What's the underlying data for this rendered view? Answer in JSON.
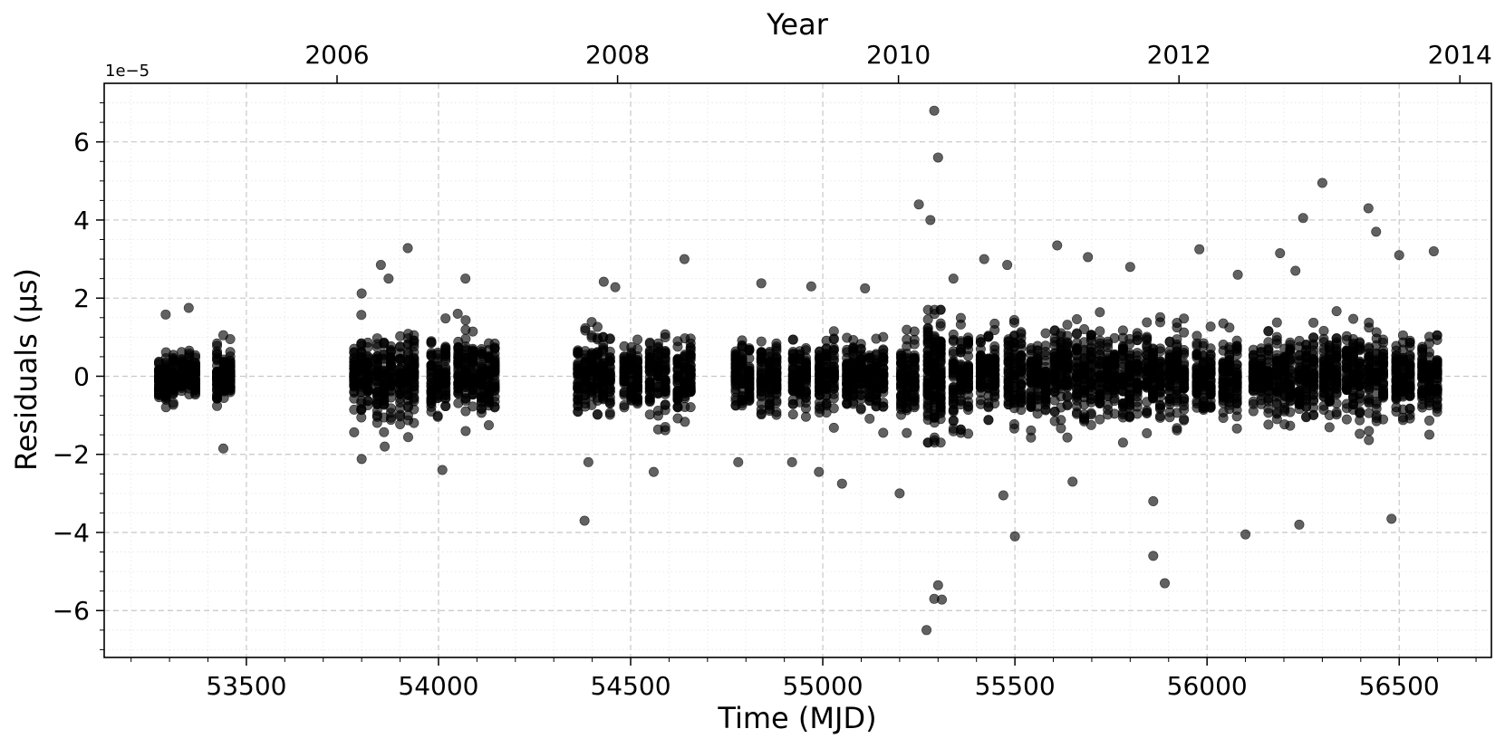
{
  "chart_data": {
    "type": "scatter",
    "xlabel": "Time (MJD)",
    "ylabel": "Residuals (µs)",
    "top_xlabel": "Year",
    "y_offset_text": "1e−5",
    "xlim": [
      53130,
      56740
    ],
    "ylim": [
      -7.2e-05,
      7.5e-05
    ],
    "x_ticks": [
      53500,
      54000,
      54500,
      55000,
      55500,
      56000,
      56500
    ],
    "x_tick_labels": [
      "53500",
      "54000",
      "54500",
      "55000",
      "55500",
      "56000",
      "56500"
    ],
    "y_ticks": [
      -6,
      -4,
      -2,
      0,
      2,
      4,
      6
    ],
    "y_tick_labels": [
      "−6",
      "−4",
      "−2",
      "0",
      "2",
      "4",
      "6"
    ],
    "top_ticks_mjd": [
      53736,
      54466,
      55197,
      55927,
      56658
    ],
    "top_tick_labels": [
      "2006",
      "2008",
      "2010",
      "2012",
      "2014"
    ],
    "grid": true,
    "legend": "none",
    "marker_color": "#000000",
    "marker_alpha": 0.62,
    "groups": [
      [
        53290,
        0.55
      ],
      [
        53350,
        0.45
      ],
      [
        53440,
        0.6
      ],
      [
        53800,
        0.75
      ],
      [
        53860,
        0.9
      ],
      [
        53920,
        0.85
      ],
      [
        54000,
        0.9
      ],
      [
        54070,
        0.85
      ],
      [
        54130,
        0.8
      ],
      [
        54380,
        0.8
      ],
      [
        54430,
        0.9
      ],
      [
        54500,
        0.8
      ],
      [
        54570,
        0.85
      ],
      [
        54640,
        0.75
      ],
      [
        54790,
        0.75
      ],
      [
        54860,
        0.8
      ],
      [
        54940,
        0.75
      ],
      [
        55010,
        0.8
      ],
      [
        55080,
        0.75
      ],
      [
        55140,
        0.7
      ],
      [
        55220,
        0.9
      ],
      [
        55290,
        1.4
      ],
      [
        55360,
        1.0
      ],
      [
        55430,
        0.95
      ],
      [
        55500,
        1.0
      ],
      [
        55560,
        0.95
      ],
      [
        55620,
        0.95
      ],
      [
        55680,
        0.95
      ],
      [
        55740,
        0.95
      ],
      [
        55800,
        0.95
      ],
      [
        55860,
        1.0
      ],
      [
        55920,
        0.95
      ],
      [
        55990,
        0.9
      ],
      [
        56060,
        0.9
      ],
      [
        56140,
        0.85
      ],
      [
        56200,
        0.95
      ],
      [
        56260,
        0.95
      ],
      [
        56320,
        0.85
      ],
      [
        56380,
        0.95
      ],
      [
        56440,
        1.0
      ],
      [
        56510,
        0.9
      ],
      [
        56580,
        0.8
      ]
    ],
    "outliers": [
      [
        53290,
        1.58
      ],
      [
        53350,
        1.75
      ],
      [
        53440,
        1.05
      ],
      [
        53440,
        -1.85
      ],
      [
        53800,
        2.12
      ],
      [
        53800,
        -2.12
      ],
      [
        53850,
        2.85
      ],
      [
        53870,
        2.5
      ],
      [
        53920,
        3.28
      ],
      [
        53860,
        -1.8
      ],
      [
        54010,
        -2.4
      ],
      [
        54050,
        1.6
      ],
      [
        54070,
        2.5
      ],
      [
        54390,
        -2.2
      ],
      [
        54380,
        -3.7
      ],
      [
        54430,
        2.42
      ],
      [
        54460,
        2.28
      ],
      [
        54560,
        -2.45
      ],
      [
        54640,
        3.0
      ],
      [
        54780,
        -2.2
      ],
      [
        54840,
        2.38
      ],
      [
        54920,
        -2.2
      ],
      [
        54970,
        2.3
      ],
      [
        54990,
        -2.45
      ],
      [
        55050,
        -2.75
      ],
      [
        55110,
        2.25
      ],
      [
        55200,
        -3.0
      ],
      [
        55250,
        4.4
      ],
      [
        55280,
        4.0
      ],
      [
        55290,
        6.8
      ],
      [
        55300,
        5.6
      ],
      [
        55290,
        -5.7
      ],
      [
        55300,
        -5.35
      ],
      [
        55270,
        -6.5
      ],
      [
        55310,
        -5.72
      ],
      [
        55340,
        2.5
      ],
      [
        55420,
        3.0
      ],
      [
        55480,
        2.85
      ],
      [
        55500,
        -4.1
      ],
      [
        55470,
        -3.05
      ],
      [
        55610,
        3.35
      ],
      [
        55650,
        -2.7
      ],
      [
        55690,
        3.05
      ],
      [
        55800,
        2.8
      ],
      [
        55860,
        -4.6
      ],
      [
        55860,
        -3.2
      ],
      [
        55890,
        -5.3
      ],
      [
        55980,
        3.25
      ],
      [
        56080,
        2.6
      ],
      [
        56100,
        -4.05
      ],
      [
        56190,
        3.15
      ],
      [
        56230,
        2.7
      ],
      [
        56250,
        4.05
      ],
      [
        56300,
        4.95
      ],
      [
        56240,
        -3.8
      ],
      [
        56420,
        4.3
      ],
      [
        56440,
        3.7
      ],
      [
        56480,
        -3.65
      ],
      [
        56500,
        3.1
      ],
      [
        56590,
        3.2
      ]
    ]
  }
}
